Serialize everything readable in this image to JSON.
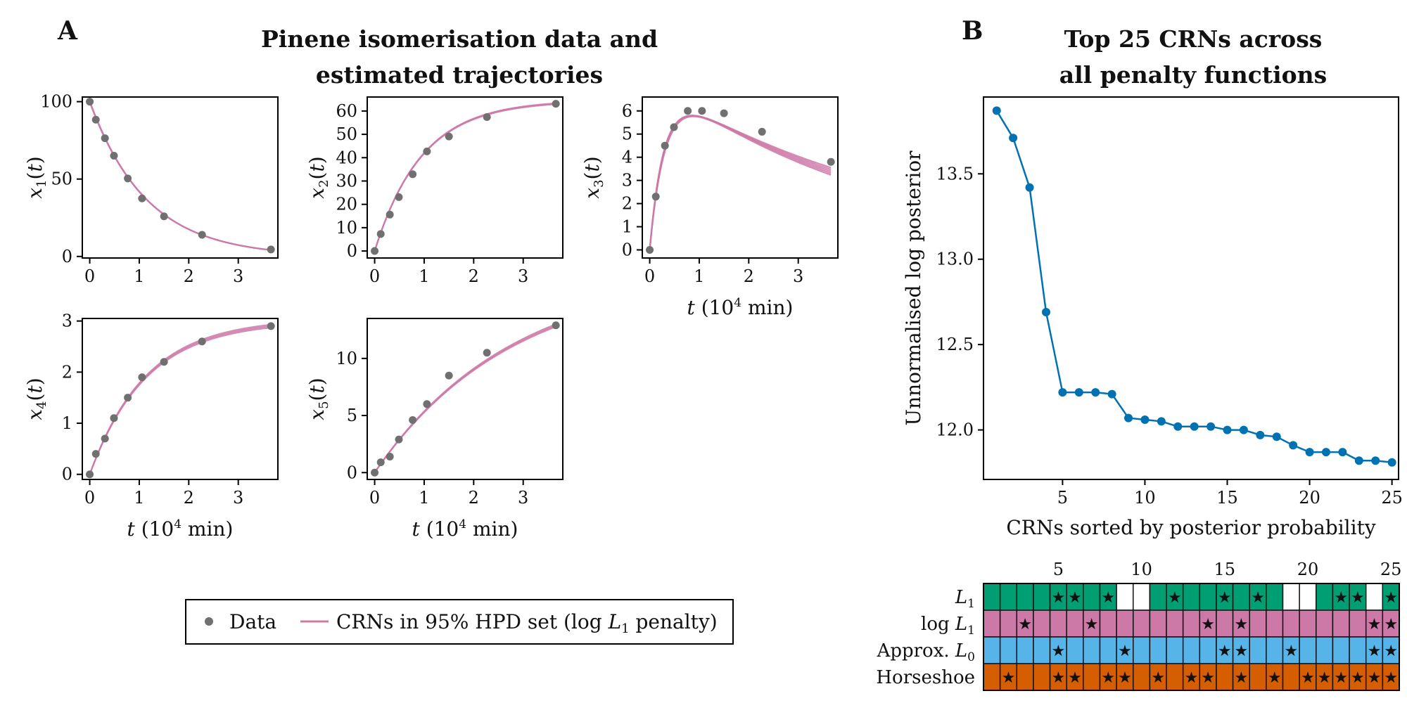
{
  "panel_a": {
    "letter": "A",
    "title_line1": "Pinene isomerisation data and",
    "title_line2": "estimated trajectories"
  },
  "panel_b": {
    "letter": "B",
    "title_line1": "Top 25 CRNs across",
    "title_line2": "all penalty functions"
  },
  "legend": {
    "data_label": "Data",
    "crn_label_prefix": "CRNs in 95% HPD set (log ",
    "crn_label_var": "L",
    "crn_label_sub": "1",
    "crn_label_suffix": " penalty)"
  },
  "colors": {
    "data": "#707070",
    "trajectory": "#CC79A7",
    "posterior_line": "#0072B2",
    "l1": "#009E73",
    "log_l1": "#CC79A7",
    "approx_l0": "#56B4E9",
    "horseshoe": "#D55E00",
    "star": "#333333"
  },
  "chart_data": [
    {
      "type": "line",
      "ylabel": "x1(t)",
      "xlabel": "",
      "xticks": [
        0,
        1,
        2,
        3
      ],
      "yticks": [
        0,
        50,
        100
      ],
      "xlim": [
        -0.15,
        3.8
      ],
      "ylim": [
        -1,
        103
      ],
      "data_x": [
        0,
        0.123,
        0.307,
        0.489,
        0.768,
        1.056,
        1.5,
        2.268,
        3.66
      ],
      "data_y": [
        100,
        88.35,
        76.4,
        65.1,
        50.4,
        37.5,
        25.9,
        14.0,
        4.5
      ],
      "series": [
        {
          "values_x": [
            0,
            3.66
          ],
          "rate": 0.87,
          "a": 100,
          "curves": [
            0,
            0.3,
            -0.3
          ]
        }
      ]
    },
    {
      "type": "line",
      "ylabel": "x2(t)",
      "xlabel": "",
      "xticks": [
        0,
        1,
        2,
        3
      ],
      "yticks": [
        0,
        10,
        20,
        30,
        40,
        50,
        60
      ],
      "xlim": [
        -0.15,
        3.8
      ],
      "ylim": [
        -3,
        66
      ],
      "data_x": [
        0,
        0.123,
        0.307,
        0.489,
        0.768,
        1.056,
        1.5,
        2.268,
        3.66
      ],
      "data_y": [
        0,
        7.3,
        15.6,
        23.1,
        32.9,
        42.7,
        49.1,
        57.4,
        63.1
      ],
      "series": [
        {
          "a": 64.5,
          "rate": 1.05,
          "curves": [
            0,
            0.2,
            -0.2
          ]
        }
      ]
    },
    {
      "type": "line",
      "ylabel": "x3(t)",
      "xlabel": "t (10^4 min)",
      "xticks": [
        0,
        1,
        2,
        3
      ],
      "yticks": [
        0,
        1,
        2,
        3,
        4,
        5,
        6
      ],
      "xlim": [
        -0.15,
        3.8
      ],
      "ylim": [
        -0.35,
        6.6
      ],
      "data_x": [
        0,
        0.123,
        0.307,
        0.489,
        0.768,
        1.056,
        1.5,
        2.268,
        3.66
      ],
      "data_y": [
        0,
        2.3,
        4.5,
        5.3,
        6.0,
        6.0,
        5.9,
        5.1,
        3.8
      ],
      "series": [
        {
          "A": 7.4,
          "k1": 3.5,
          "k2": 0.21,
          "curves": [
            [
              7.25,
              3.6,
              0.195
            ],
            [
              7.35,
              3.5,
              0.205
            ],
            [
              7.45,
              3.4,
              0.215
            ],
            [
              7.55,
              3.3,
              0.225
            ],
            [
              7.65,
              3.2,
              0.235
            ]
          ]
        }
      ]
    },
    {
      "type": "line",
      "ylabel": "x4(t)",
      "xlabel": "t (10^4 min)",
      "xticks": [
        0,
        1,
        2,
        3
      ],
      "yticks": [
        0,
        1,
        2,
        3
      ],
      "xlim": [
        -0.15,
        3.8
      ],
      "ylim": [
        -0.1,
        3.05
      ],
      "data_x": [
        0,
        0.123,
        0.307,
        0.489,
        0.768,
        1.056,
        1.5,
        2.268,
        3.66
      ],
      "data_y": [
        0,
        0.4,
        0.7,
        1.1,
        1.5,
        1.9,
        2.2,
        2.6,
        2.9
      ],
      "series": [
        {
          "a": 3.02,
          "rate": 0.88,
          "curves": [
            0,
            0.03,
            -0.03
          ]
        }
      ]
    },
    {
      "type": "line",
      "ylabel": "x5(t)",
      "xlabel": "t (10^4 min)",
      "xticks": [
        0,
        1,
        2,
        3
      ],
      "yticks": [
        0,
        5,
        10
      ],
      "xlim": [
        -0.15,
        3.8
      ],
      "ylim": [
        -0.6,
        13.5
      ],
      "data_x": [
        0,
        0.123,
        0.307,
        0.489,
        0.768,
        1.056,
        1.5,
        2.268,
        3.66
      ],
      "data_y": [
        0,
        0.9,
        1.4,
        2.9,
        4.6,
        6.0,
        8.5,
        10.5,
        12.9
      ],
      "series": [
        {
          "a": 17.6,
          "rate": 0.36,
          "curves": [
            0,
            0.15,
            -0.15
          ]
        }
      ]
    },
    {
      "type": "line",
      "title": "Top 25 CRNs across all penalty functions",
      "xlabel": "CRNs sorted by posterior probability",
      "ylabel": "Unnormalised log posterior",
      "xticks": [
        5,
        10,
        15,
        20,
        25
      ],
      "yticks": [
        12.0,
        12.5,
        13.0,
        13.5
      ],
      "ytick_labels": [
        "12.0",
        "12.5",
        "13.0",
        "13.5"
      ],
      "xlim": [
        0.2,
        25.4
      ],
      "ylim": [
        11.71,
        13.95
      ],
      "x": [
        1,
        2,
        3,
        4,
        5,
        6,
        7,
        8,
        9,
        10,
        11,
        12,
        13,
        14,
        15,
        16,
        17,
        18,
        19,
        20,
        21,
        22,
        23,
        24,
        25
      ],
      "values": [
        13.87,
        13.71,
        13.42,
        12.69,
        12.22,
        12.22,
        12.22,
        12.21,
        12.07,
        12.06,
        12.05,
        12.02,
        12.02,
        12.02,
        12.0,
        12.0,
        11.97,
        11.96,
        11.91,
        11.87,
        11.87,
        11.87,
        11.82,
        11.82,
        11.81
      ]
    },
    {
      "type": "heatmap",
      "xticks": [
        5,
        10,
        15,
        20,
        25
      ],
      "rows": [
        {
          "label_prefix": "",
          "label_var": "L",
          "label_sub": "1",
          "label_suffix": "",
          "color_key": "l1",
          "filled": [
            1,
            1,
            1,
            1,
            1,
            1,
            1,
            1,
            0,
            0,
            1,
            1,
            1,
            1,
            1,
            1,
            1,
            1,
            0,
            0,
            1,
            1,
            1,
            0,
            1
          ],
          "stars": [
            0,
            0,
            0,
            0,
            1,
            1,
            0,
            1,
            0,
            0,
            0,
            1,
            0,
            0,
            1,
            0,
            1,
            0,
            0,
            0,
            0,
            1,
            1,
            0,
            1
          ]
        },
        {
          "label_prefix": "log ",
          "label_var": "L",
          "label_sub": "1",
          "label_suffix": "",
          "color_key": "log_l1",
          "filled": [
            1,
            1,
            1,
            1,
            1,
            1,
            1,
            1,
            1,
            1,
            1,
            1,
            1,
            1,
            1,
            1,
            1,
            1,
            1,
            1,
            1,
            1,
            1,
            1,
            1
          ],
          "stars": [
            0,
            0,
            1,
            0,
            0,
            0,
            1,
            0,
            0,
            0,
            0,
            0,
            0,
            1,
            0,
            1,
            0,
            0,
            0,
            0,
            0,
            0,
            0,
            1,
            1
          ]
        },
        {
          "label_prefix": "Approx. ",
          "label_var": "L",
          "label_sub": "0",
          "label_suffix": "",
          "color_key": "approx_l0",
          "filled": [
            1,
            1,
            1,
            1,
            1,
            1,
            1,
            1,
            1,
            1,
            1,
            1,
            1,
            1,
            1,
            1,
            1,
            1,
            1,
            1,
            1,
            1,
            1,
            1,
            1
          ],
          "stars": [
            0,
            0,
            0,
            0,
            1,
            0,
            0,
            0,
            1,
            0,
            0,
            0,
            0,
            0,
            1,
            1,
            0,
            0,
            1,
            0,
            0,
            0,
            0,
            1,
            1
          ]
        },
        {
          "label_prefix": "Horseshoe",
          "label_var": "",
          "label_sub": "",
          "label_suffix": "",
          "color_key": "horseshoe",
          "filled": [
            1,
            1,
            1,
            1,
            1,
            1,
            1,
            1,
            1,
            1,
            1,
            1,
            1,
            1,
            1,
            1,
            1,
            1,
            1,
            1,
            1,
            1,
            1,
            1,
            1
          ],
          "stars": [
            0,
            1,
            0,
            0,
            1,
            1,
            0,
            1,
            1,
            0,
            1,
            0,
            1,
            1,
            0,
            1,
            0,
            1,
            0,
            1,
            1,
            1,
            1,
            1,
            1
          ]
        }
      ]
    }
  ]
}
